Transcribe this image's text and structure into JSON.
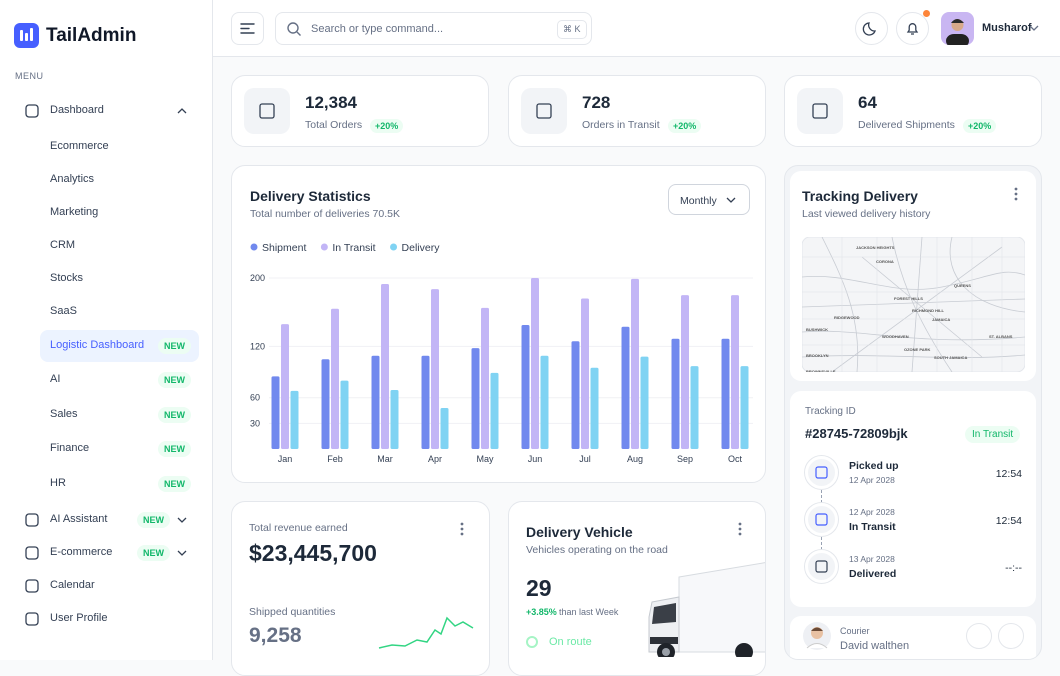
{
  "brand": "TailAdmin",
  "sidebar": {
    "section": "MENU",
    "items": [
      {
        "label": "Dashboard",
        "children": [
          {
            "label": "Ecommerce"
          },
          {
            "label": "Analytics"
          },
          {
            "label": "Marketing"
          },
          {
            "label": "CRM"
          },
          {
            "label": "Stocks"
          },
          {
            "label": "SaaS"
          },
          {
            "label": "Logistic Dashboard",
            "badge": "NEW",
            "active": true
          },
          {
            "label": "AI",
            "badge": "NEW"
          },
          {
            "label": "Sales",
            "badge": "NEW"
          },
          {
            "label": "Finance",
            "badge": "NEW"
          },
          {
            "label": "HR",
            "badge": "NEW"
          }
        ]
      },
      {
        "label": "AI Assistant",
        "badge": "NEW",
        "expandable": true
      },
      {
        "label": "E-commerce",
        "badge": "NEW",
        "expandable": true
      },
      {
        "label": "Calendar"
      },
      {
        "label": "User Profile"
      }
    ]
  },
  "header": {
    "search_placeholder": "Search or type command...",
    "shortcut": "⌘ K",
    "user": "Musharof"
  },
  "stats": [
    {
      "value": "12,384",
      "label": "Total Orders",
      "change": "+20%"
    },
    {
      "value": "728",
      "label": "Orders in Transit",
      "change": "+20%"
    },
    {
      "value": "64",
      "label": "Delivered Shipments",
      "change": "+20%"
    }
  ],
  "chart_data": {
    "type": "bar",
    "title": "Delivery Statistics",
    "subtitle": "Total number of deliveries 70.5K",
    "period": "Monthly",
    "categories": [
      "Jan",
      "Feb",
      "Mar",
      "Apr",
      "May",
      "Jun",
      "Jul",
      "Aug",
      "Sep",
      "Oct"
    ],
    "series": [
      {
        "name": "Shipment",
        "color": "#7189ee",
        "values": [
          85,
          105,
          109,
          109,
          118,
          145,
          126,
          143,
          129,
          129
        ]
      },
      {
        "name": "In Transit",
        "color": "#c2b5f6",
        "values": [
          146,
          164,
          193,
          187,
          165,
          200,
          176,
          199,
          180,
          180
        ]
      },
      {
        "name": "Delivery",
        "color": "#80d3f3",
        "values": [
          68,
          80,
          69,
          48,
          89,
          109,
          95,
          108,
          97,
          97
        ]
      }
    ],
    "ylim": [
      0,
      200
    ],
    "yticks": [
      30,
      60,
      120,
      200
    ],
    "grid": true
  },
  "tracking": {
    "title": "Tracking Delivery",
    "subtitle": "Last viewed delivery history",
    "map_labels": [
      "JACKSON HEIGHTS",
      "CORONA",
      "QUEENS",
      "FOREST HILLS",
      "RIDGEWOOD",
      "RICHMOND HILL",
      "JAMAICA",
      "BUSHWICK",
      "WOODHAVEN",
      "OZONE PARK",
      "ST. ALBANS",
      "BROOKLYN",
      "SOUTH JAMAICA",
      "BROWNSVILLE"
    ],
    "id_label": "Tracking ID",
    "id": "#28745-72809bjk",
    "status": "In Transit",
    "steps": [
      {
        "status": "Picked up",
        "date": "12 Apr 2028",
        "time": "12:54"
      },
      {
        "status": "In Transit",
        "date": "12 Apr 2028",
        "time": "12:54"
      },
      {
        "status": "Delivered",
        "date": "13 Apr 2028",
        "time": "--:--"
      }
    ],
    "courier_label": "Courier",
    "courier": "David walthen"
  },
  "revenue": {
    "label": "Total revenue earned",
    "value": "$23,445,700",
    "shipped_label": "Shipped quantities",
    "shipped": "9,258"
  },
  "vehicle": {
    "title": "Delivery Vehicle",
    "subtitle": "Vehicles operating on the road",
    "value": "29",
    "change": "+3.85%",
    "change_note": "than last Week",
    "status": "On route"
  }
}
